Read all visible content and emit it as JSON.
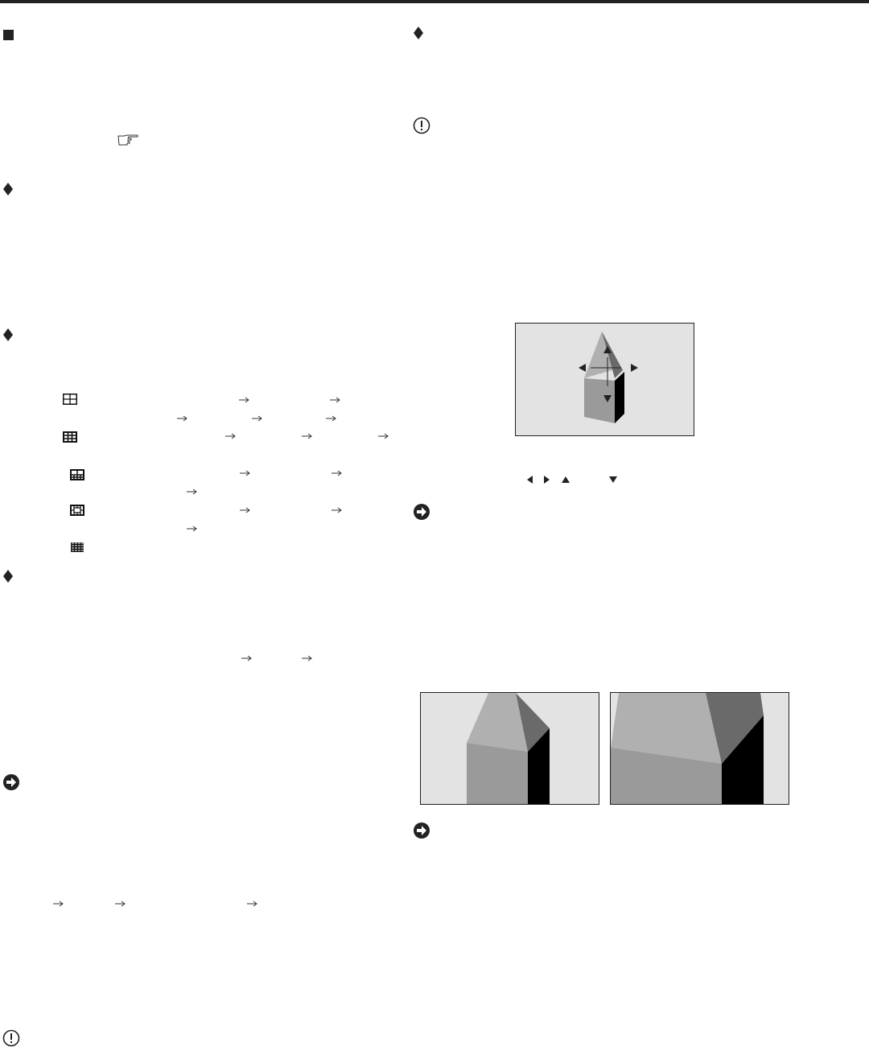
{
  "icons": {
    "section_marker": "filled-square-icon",
    "bullet": "diamond-icon",
    "caution": "exclamation-circle-icon",
    "reference": "pointing-hand-icon",
    "note": "arrow-circle-icon",
    "sequence": "right-arrow-icon",
    "layouts": [
      "quad-split-icon",
      "nine-split-icon",
      "split-3plus6-icon",
      "split-frame-icon",
      "sixteen-split-icon"
    ],
    "direction_keys": [
      "left-triangle-icon",
      "right-triangle-icon",
      "up-triangle-icon",
      "down-triangle-icon"
    ]
  },
  "colors": {
    "ink": "#222222",
    "figure_bg": "#e3e3e3",
    "light_face": "#b0b0b0",
    "mid_face": "#9a9a9a",
    "dark_face": "#6a6a6a",
    "shadow_face": "#000000"
  }
}
